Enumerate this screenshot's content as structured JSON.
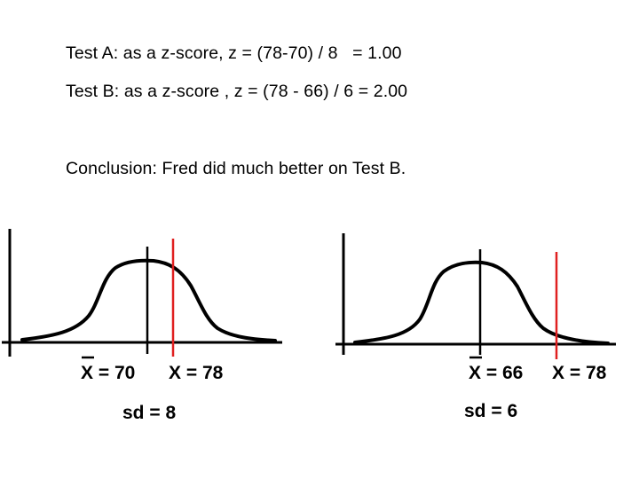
{
  "text": {
    "test_a": "Test A: as a z-score, z = (78-70) / 8   = 1.00",
    "test_b": "Test B: as a z-score , z = (78 - 66) / 6 = 2.00",
    "conclusion": "Conclusion: Fred did much better on Test B."
  },
  "colors": {
    "curve": "#000000",
    "score_line": "#e02020"
  },
  "diagram": {
    "left": {
      "mean_label": "X = 70",
      "score_label": "X = 78",
      "sd_label": "sd = 8"
    },
    "right": {
      "mean_label": "X = 66",
      "score_label": "X = 78",
      "sd_label": "sd = 6"
    }
  }
}
